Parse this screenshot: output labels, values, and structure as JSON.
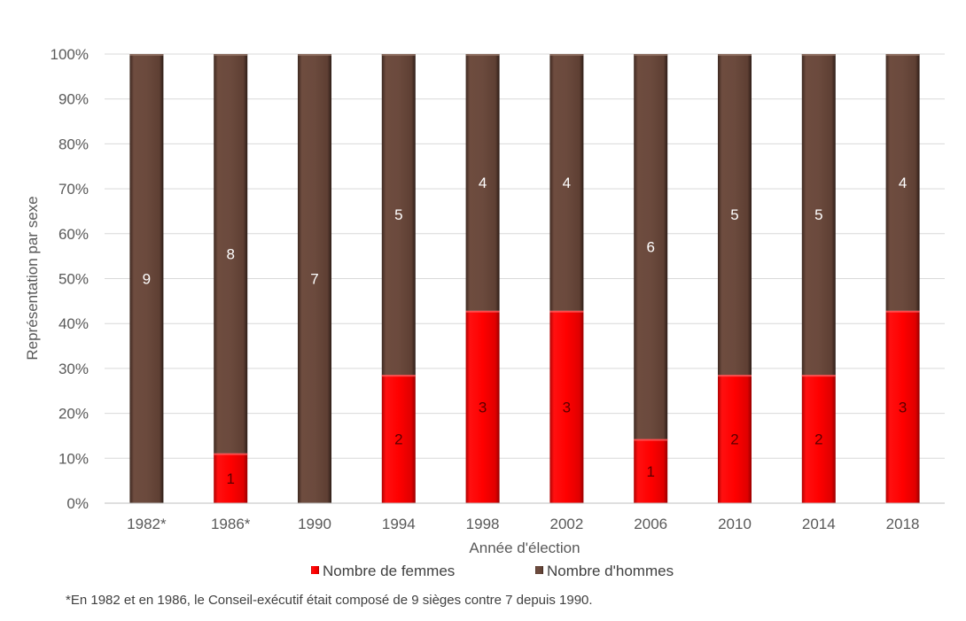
{
  "chart_data": {
    "type": "bar",
    "stacked": "percent",
    "categories": [
      "1982*",
      "1986*",
      "1990",
      "1994",
      "1998",
      "2002",
      "2006",
      "2010",
      "2014",
      "2018"
    ],
    "series": [
      {
        "name": "Nombre de femmes",
        "values": [
          0,
          1,
          0,
          2,
          3,
          3,
          1,
          2,
          2,
          3
        ],
        "color": "#ff0000"
      },
      {
        "name": "Nombre d'hommes",
        "values": [
          9,
          8,
          7,
          5,
          4,
          4,
          6,
          5,
          5,
          4
        ],
        "color": "#6b4a3d"
      }
    ],
    "xlabel": "Année d'élection",
    "ylabel": "Représentation par sexe",
    "ylim": [
      0,
      100
    ],
    "yticks": [
      "0%",
      "10%",
      "20%",
      "30%",
      "40%",
      "50%",
      "60%",
      "70%",
      "80%",
      "90%",
      "100%"
    ],
    "grid": true,
    "legend_position": "bottom",
    "footnote": "*En 1982 et en 1986, le Conseil-exécutif était composé de 9 sièges contre 7 depuis 1990."
  }
}
